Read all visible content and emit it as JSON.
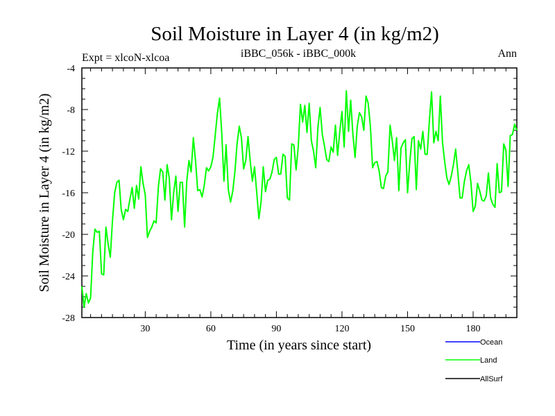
{
  "chart_data": {
    "type": "line",
    "title": "Soil Moisture in Layer 4 (in kg/m2)",
    "subtitle_left": "Expt = xlcoN-xlcoa",
    "subtitle_center": "iBBC_056k - iBBC_000k",
    "subtitle_right": "Ann",
    "xlabel": "Time (in years since start)",
    "ylabel": "Soil Moisture in Layer 4 (in kg/m2)",
    "xlim": [
      1,
      200
    ],
    "ylim": [
      -28,
      -4
    ],
    "xticks": [
      30,
      60,
      90,
      120,
      150,
      180
    ],
    "yticks": [
      -28,
      -24,
      -20,
      -16,
      -12,
      -8,
      -4
    ],
    "xtick_labels": [
      "30",
      "60",
      "90",
      "120",
      "150",
      "180"
    ],
    "ytick_labels": [
      "-28",
      "-24",
      "-20",
      "-16",
      "-12",
      "-8",
      "-4"
    ],
    "series": [
      {
        "name": "Land",
        "color": "#00ff00",
        "x_start": 1,
        "values": [
          -25.0,
          -27.0,
          -25.7,
          -26.6,
          -26.1,
          -21.6,
          -19.5,
          -19.8,
          -19.7,
          -23.8,
          -23.9,
          -19.3,
          -20.9,
          -22.2,
          -18.7,
          -16.0,
          -15.0,
          -14.8,
          -17.6,
          -18.6,
          -17.6,
          -17.8,
          -16.6,
          -15.5,
          -17.5,
          -15.3,
          -16.6,
          -13.5,
          -15.1,
          -16.2,
          -20.3,
          -19.7,
          -19.3,
          -18.7,
          -18.9,
          -15.4,
          -13.7,
          -14.0,
          -16.7,
          -13.3,
          -14.6,
          -18.6,
          -16.0,
          -14.4,
          -17.8,
          -15.0,
          -15.0,
          -19.3,
          -14.9,
          -12.9,
          -14.0,
          -10.7,
          -12.9,
          -15.8,
          -15.7,
          -16.4,
          -15.3,
          -13.6,
          -13.9,
          -13.5,
          -12.6,
          -10.5,
          -8.4,
          -6.9,
          -10.2,
          -14.9,
          -11.4,
          -15.7,
          -16.9,
          -15.9,
          -14.0,
          -11.3,
          -9.6,
          -10.7,
          -13.7,
          -12.9,
          -10.6,
          -12.9,
          -14.9,
          -13.5,
          -16.0,
          -18.5,
          -16.8,
          -13.5,
          -15.9,
          -14.8,
          -14.7,
          -14.0,
          -12.8,
          -12.6,
          -14.2,
          -14.2,
          -12.3,
          -12.5,
          -16.5,
          -16.7,
          -11.3,
          -11.4,
          -13.8,
          -11.6,
          -7.5,
          -9.2,
          -7.6,
          -10.2,
          -7.4,
          -11.0,
          -12.0,
          -13.6,
          -9.7,
          -7.8,
          -10.4,
          -11.5,
          -12.8,
          -13.0,
          -11.6,
          -12.1,
          -9.5,
          -12.4,
          -10.1,
          -8.2,
          -11.6,
          -6.2,
          -10.1,
          -7.1,
          -10.4,
          -12.6,
          -9.6,
          -8.3,
          -8.7,
          -10.0,
          -6.7,
          -7.4,
          -9.6,
          -13.6,
          -13.1,
          -13.0,
          -13.9,
          -15.5,
          -15.6,
          -14.4,
          -14.0,
          -9.5,
          -11.0,
          -12.9,
          -10.7,
          -15.8,
          -11.7,
          -11.2,
          -10.9,
          -16.0,
          -13.1,
          -10.8,
          -10.6,
          -15.7,
          -11.0,
          -11.8,
          -10.1,
          -12.3,
          -12.3,
          -9.0,
          -6.3,
          -11.2,
          -10.1,
          -11.0,
          -6.7,
          -11.2,
          -13.0,
          -14.6,
          -15.2,
          -14.4,
          -13.3,
          -11.8,
          -14.0,
          -16.5,
          -16.5,
          -14.9,
          -13.9,
          -13.3,
          -15.0,
          -17.8,
          -17.3,
          -15.1,
          -15.8,
          -16.7,
          -16.8,
          -16.3,
          -14.1,
          -16.5,
          -17.1,
          -17.4,
          -13.2,
          -16.0,
          -15.9,
          -11.3,
          -11.9,
          -15.4,
          -10.5,
          -10.4,
          -9.4,
          -10.0
        ]
      }
    ],
    "legend": [
      {
        "name": "Ocean",
        "color": "#0000ff"
      },
      {
        "name": "Land",
        "color": "#00ff00"
      },
      {
        "name": "AllSurf",
        "color": "#000000"
      }
    ]
  }
}
